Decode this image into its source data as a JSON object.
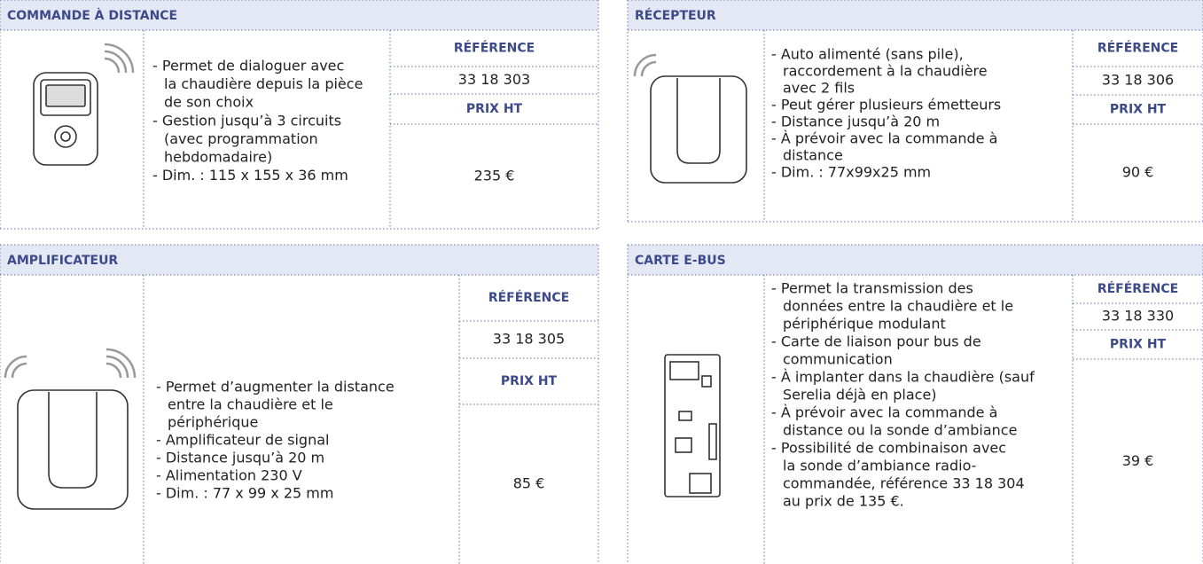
{
  "panels": [
    {
      "title": "COMMANDE À DISTANCE",
      "description": [
        "- Permet de dialoguer avec",
        "la chaudière depuis la pièce",
        "de son choix",
        "- Gestion jusqu’à 3 circuits",
        "(avec programmation",
        "hebdomadaire)",
        "- Dim. : 115 x 155 x 36 mm"
      ],
      "reference_label": "RÉFÉRENCE",
      "reference": "33 18 303",
      "price_label": "PRIX HT",
      "price": "235 €"
    },
    {
      "title": "RÉCEPTEUR",
      "description": [
        "- Auto alimenté (sans pile),",
        "raccordement à la chaudière",
        "avec 2 fils",
        "- Peut gérer plusieurs émetteurs",
        "- Distance jusqu’à 20 m",
        "- À prévoir avec la commande à",
        "distance",
        "- Dim. : 77x99x25 mm"
      ],
      "reference_label": "RÉFÉRENCE",
      "reference": "33 18 306",
      "price_label": "PRIX HT",
      "price": "90 €"
    },
    {
      "title": "AMPLIFICATEUR",
      "description": [
        "- Permet d’augmenter la distance",
        "entre la chaudière et le",
        "périphérique",
        "- Amplificateur de signal",
        "- Distance jusqu’à 20 m",
        "- Alimentation 230 V",
        "- Dim. : 77 x 99 x 25 mm"
      ],
      "reference_label": "RÉFÉRENCE",
      "reference": "33 18 305",
      "price_label": "PRIX HT",
      "price": "85 €"
    },
    {
      "title": "CARTE E-BUS",
      "description": [
        "- Permet la transmission des",
        "données entre la chaudière et le",
        "périphérique modulant",
        "- Carte de liaison pour bus de",
        "communication",
        "- À implanter dans la chaudière (sauf",
        "Serelia déjà en place)",
        "- À prévoir avec la commande à",
        "distance ou la sonde d’ambiance",
        "- Possibilité de combinaison avec",
        "la sonde d’ambiance radio-",
        "commandée, référence 33 18 304",
        "au prix de 135 €."
      ],
      "reference_label": "RÉFÉRENCE",
      "reference": "33 18 330",
      "price_label": "PRIX HT",
      "price": "39 €"
    }
  ]
}
